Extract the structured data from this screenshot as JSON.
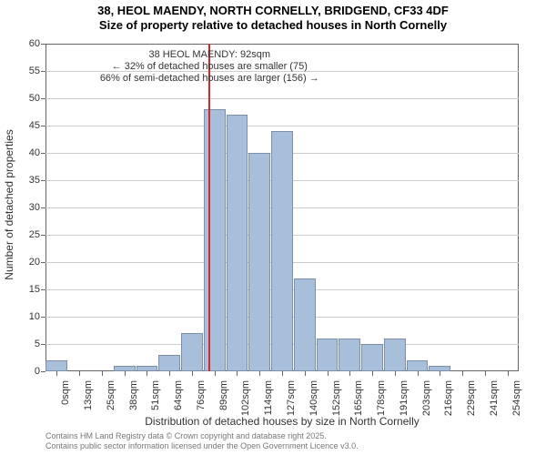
{
  "title_line1": "38, HEOL MAENDY, NORTH CORNELLY, BRIDGEND, CF33 4DF",
  "title_line2": "Size of property relative to detached houses in North Cornelly",
  "title_fontsize": 13,
  "chart": {
    "type": "histogram",
    "background_color": "#ffffff",
    "grid_color": "#cccccc",
    "axis_color": "#666666",
    "ylim": [
      0,
      60
    ],
    "ytick_step": 5,
    "bar_fill": "#a8bfdc",
    "bar_border": "rgba(0,0,0,0.25)",
    "bar_width_ratio": 0.96,
    "x_categories": [
      "0sqm",
      "13sqm",
      "25sqm",
      "38sqm",
      "51sqm",
      "64sqm",
      "76sqm",
      "89sqm",
      "102sqm",
      "114sqm",
      "127sqm",
      "140sqm",
      "152sqm",
      "165sqm",
      "178sqm",
      "191sqm",
      "203sqm",
      "216sqm",
      "229sqm",
      "241sqm",
      "254sqm"
    ],
    "values": [
      2,
      0,
      0,
      1,
      1,
      3,
      7,
      48,
      47,
      40,
      44,
      17,
      6,
      6,
      5,
      6,
      2,
      1,
      0,
      0,
      0
    ],
    "ref_line": {
      "bin_index": 7,
      "rel": 0.28,
      "color": "#d8262c",
      "width": 2
    },
    "annotation": {
      "line1": "38 HEOL MAENDY: 92sqm",
      "line2": "← 32% of detached houses are smaller (75)",
      "line3": "66% of semi-detached houses are larger (156) →",
      "fontsize": 11
    },
    "y_axis_title": "Number of detached properties",
    "x_axis_title": "Distribution of detached houses by size in North Cornelly",
    "axis_title_fontsize": 12,
    "tick_fontsize": 11
  },
  "attribution_line1": "Contains HM Land Registry data © Crown copyright and database right 2025.",
  "attribution_line2": "Contains public sector information licensed under the Open Government Licence v3.0.",
  "attribution_fontsize": 9,
  "attribution_color": "#777777"
}
